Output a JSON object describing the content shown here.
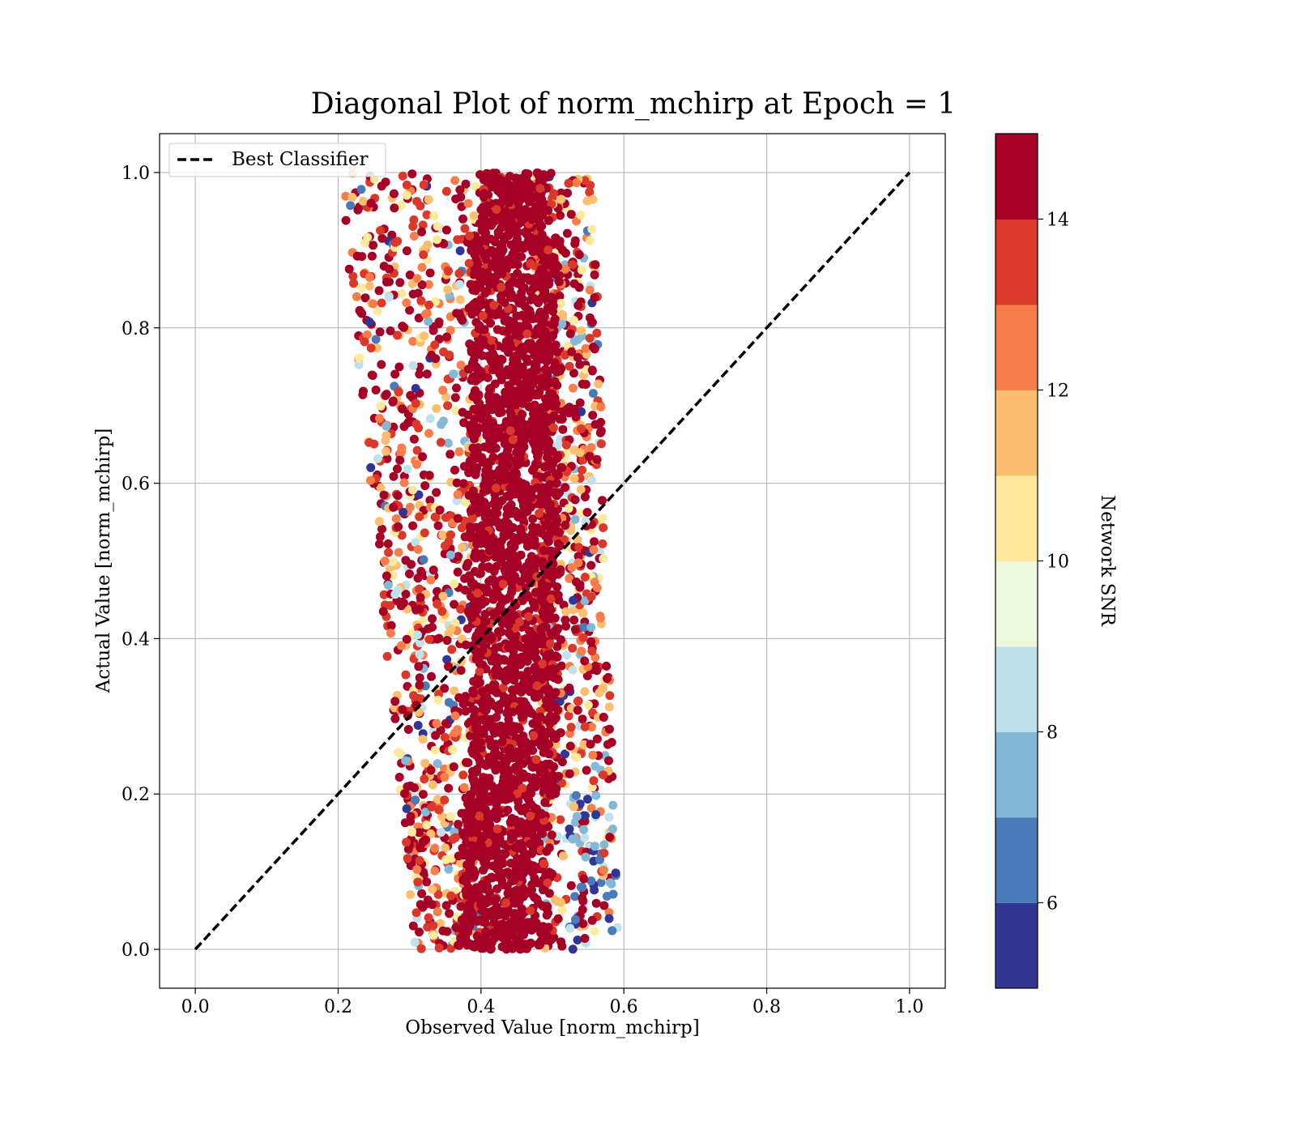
{
  "chart_data": {
    "type": "scatter",
    "title": "Diagonal Plot of norm_mchirp at Epoch = 1",
    "xlabel": "Observed Value [norm_mchirp]",
    "ylabel": "Actual Value [norm_mchirp]",
    "xlim": [
      -0.05,
      1.05
    ],
    "ylim": [
      -0.05,
      1.05
    ],
    "x_ticks": [
      0.0,
      0.2,
      0.4,
      0.6,
      0.8,
      1.0
    ],
    "y_ticks": [
      0.0,
      0.2,
      0.4,
      0.6,
      0.8,
      1.0
    ],
    "x_tick_labels": [
      "0.0",
      "0.2",
      "0.4",
      "0.6",
      "0.8",
      "1.0"
    ],
    "y_tick_labels": [
      "0.0",
      "0.2",
      "0.4",
      "0.6",
      "0.8",
      "1.0"
    ],
    "grid": true,
    "legend": {
      "placement": "top-left",
      "entries": [
        "Best Classifier"
      ]
    },
    "reference_line": {
      "name": "Best Classifier",
      "style": "dashed",
      "color": "#000000",
      "x": [
        0.0,
        1.0
      ],
      "y": [
        0.0,
        1.0
      ]
    },
    "scatter_summary": {
      "x_center_range": [
        0.36,
        0.52
      ],
      "x_outer_range": [
        0.21,
        0.61
      ],
      "y_range": [
        0.0,
        1.0
      ],
      "note_color": "points colored by Network SNR"
    },
    "colorbar": {
      "label": "Network SNR",
      "range": [
        5,
        15
      ],
      "tick_values": [
        6,
        8,
        10,
        12,
        14
      ],
      "tick_labels": [
        "6",
        "8",
        "10",
        "12",
        "14"
      ],
      "bins": [
        5,
        6,
        7,
        8,
        9,
        10,
        11,
        12,
        13,
        14,
        15
      ],
      "colors": [
        "#313695",
        "#4a7ab8",
        "#83b8d7",
        "#c0e2ed",
        "#eef8df",
        "#fee99d",
        "#fdbe6f",
        "#f57e4b",
        "#da382a",
        "#a50026"
      ]
    }
  }
}
